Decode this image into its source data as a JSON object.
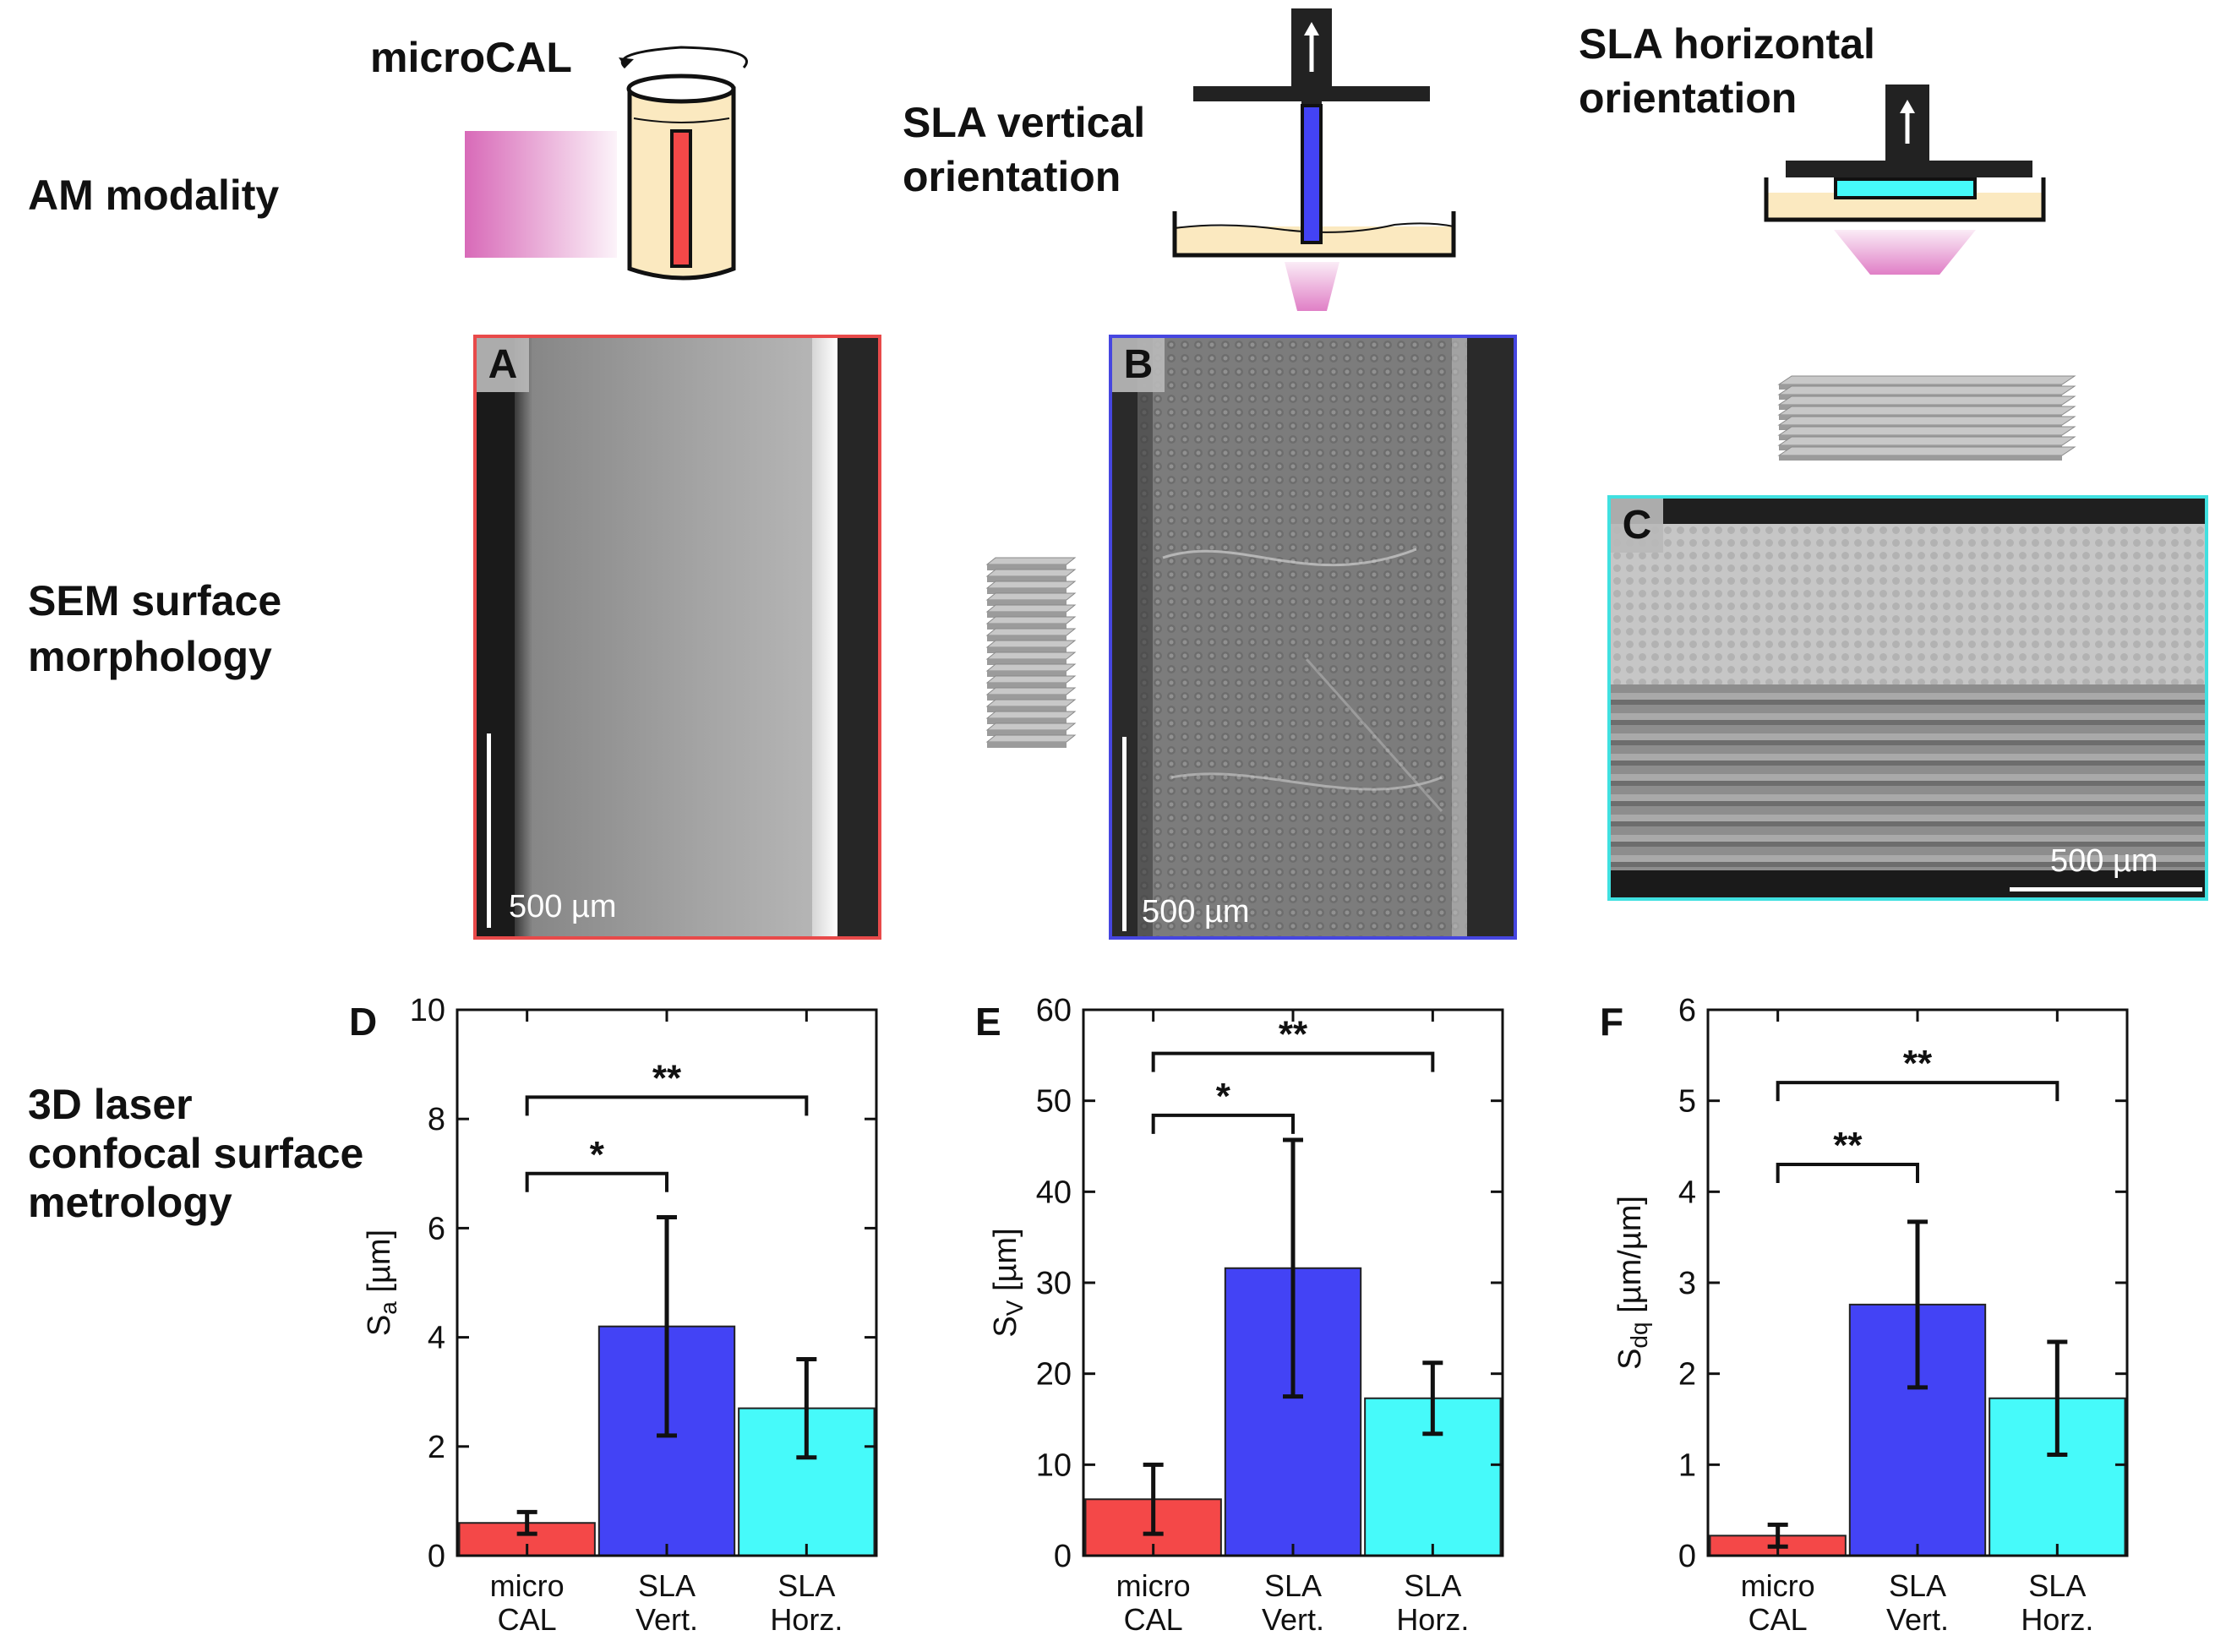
{
  "row_labels": {
    "am": "AM modality",
    "sem": "SEM surface\nmorphology",
    "metrology": "3D laser\nconfocal surface\nmetrology"
  },
  "modalities": {
    "microcal": "microCAL",
    "sla_vertical": "SLA vertical\norientation",
    "sla_horizontal": "SLA horizontal\norientation"
  },
  "sem_panels": [
    {
      "letter": "A",
      "scale": "500 µm",
      "border": "#e84a4a"
    },
    {
      "letter": "B",
      "scale": "500 µm",
      "border": "#4646e0"
    },
    {
      "letter": "C",
      "scale": "500 µm",
      "border": "#40e0e0"
    }
  ],
  "colors": {
    "microcal": "#f44848",
    "sla_vert": "#4343f5",
    "sla_horz": "#46fafa",
    "resin": "#fbe9c0",
    "light": "#dd6fbf"
  },
  "chart_data": [
    {
      "panel": "D",
      "type": "bar",
      "ylabel_main": "S",
      "ylabel_sub": "a",
      "ylabel_unit": " [µm]",
      "ylim": [
        0,
        10
      ],
      "yticks": [
        0,
        2,
        4,
        6,
        8,
        10
      ],
      "categories": [
        [
          "micro",
          "CAL"
        ],
        [
          "SLA",
          "Vert."
        ],
        [
          "SLA",
          "Horz."
        ]
      ],
      "values": [
        0.6,
        4.2,
        2.7
      ],
      "errors": [
        0.2,
        2.0,
        0.9
      ],
      "significance": [
        {
          "from": 0,
          "to": 1,
          "label": "*",
          "y": 7.0
        },
        {
          "from": 0,
          "to": 2,
          "label": "**",
          "y": 8.4
        }
      ]
    },
    {
      "panel": "E",
      "type": "bar",
      "ylabel_main": "S",
      "ylabel_sub": "V",
      "ylabel_unit": " [µm]",
      "ylim": [
        0,
        60
      ],
      "yticks": [
        0,
        10,
        20,
        30,
        40,
        50,
        60
      ],
      "categories": [
        [
          "micro",
          "CAL"
        ],
        [
          "SLA",
          "Vert."
        ],
        [
          "SLA",
          "Horz."
        ]
      ],
      "values": [
        6.2,
        31.6,
        17.3
      ],
      "errors": [
        3.8,
        14.1,
        3.9
      ],
      "significance": [
        {
          "from": 0,
          "to": 1,
          "label": "*",
          "y": 48.4
        },
        {
          "from": 0,
          "to": 2,
          "label": "**",
          "y": 55.2
        }
      ]
    },
    {
      "panel": "F",
      "type": "bar",
      "ylabel_main": "S",
      "ylabel_sub": "dq",
      "ylabel_unit": " [µm/µm]",
      "ylim": [
        0,
        6
      ],
      "yticks": [
        0,
        1,
        2,
        3,
        4,
        5,
        6
      ],
      "categories": [
        [
          "micro",
          "CAL"
        ],
        [
          "SLA",
          "Vert."
        ],
        [
          "SLA",
          "Horz."
        ]
      ],
      "values": [
        0.22,
        2.76,
        1.73
      ],
      "errors": [
        0.12,
        0.91,
        0.62
      ],
      "significance": [
        {
          "from": 0,
          "to": 1,
          "label": "**",
          "y": 4.3
        },
        {
          "from": 0,
          "to": 2,
          "label": "**",
          "y": 5.2
        }
      ]
    }
  ]
}
